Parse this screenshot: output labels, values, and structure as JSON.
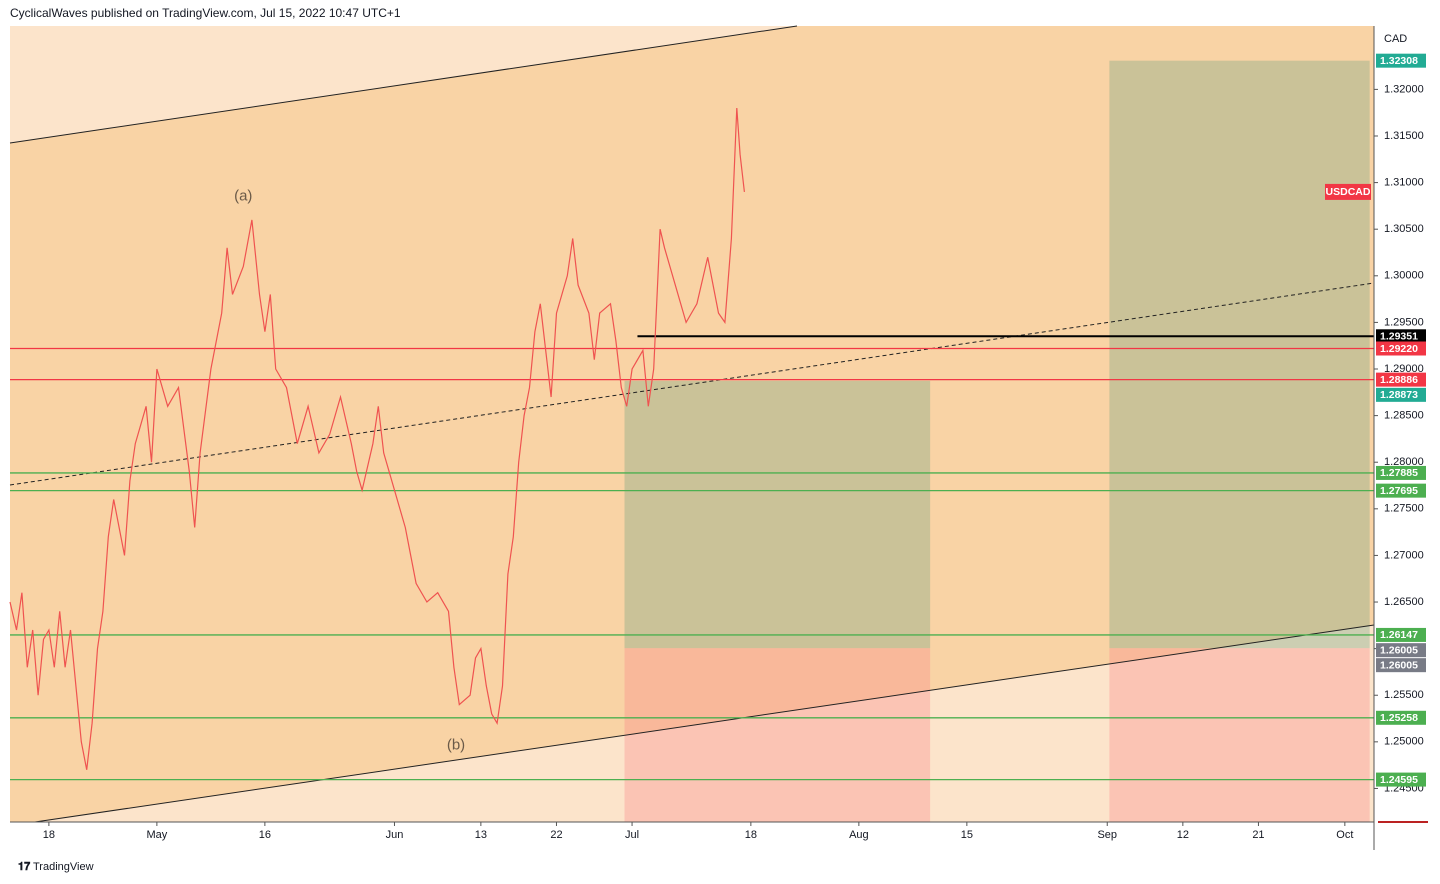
{
  "chart_data": {
    "type": "line",
    "header": "CyclicalWaves published on TradingView.com, Jul 15, 2022 10:47 UTC+1",
    "brand": "TradingView",
    "currency": "CAD",
    "series": [
      {
        "name": "USDCAD",
        "color": "#ef5350",
        "x": [
          -3.6,
          -3,
          -2.5,
          -2,
          -1.5,
          -1,
          -0.5,
          0,
          0.5,
          1,
          1.5,
          2,
          2.5,
          3,
          3.5,
          4,
          4.5,
          5,
          5.5,
          6,
          7,
          7.5,
          8,
          9,
          9.5,
          10,
          11,
          12,
          13,
          13.5,
          14,
          15,
          16,
          16.5,
          17,
          18,
          18.8,
          19.5,
          20,
          20.5,
          21,
          22,
          23,
          24,
          25,
          26,
          27,
          28,
          28.5,
          29,
          30,
          30.5,
          31,
          32,
          33,
          34,
          35,
          36,
          37,
          37.5,
          38,
          39,
          39.5,
          40,
          40.5,
          41,
          41.5,
          42,
          42.5,
          43,
          43.5,
          44,
          44.5,
          45,
          45.5,
          46,
          46.5,
          47,
          48,
          48.5,
          49,
          50,
          50.5,
          51,
          52,
          52.5,
          53,
          53.5,
          54,
          55,
          55.5,
          56,
          56.6,
          57,
          58,
          59,
          60,
          61,
          62,
          62.6,
          63.2,
          63.7,
          64,
          64.4
        ],
        "values": [
          1.265,
          1.262,
          1.266,
          1.258,
          1.262,
          1.255,
          1.261,
          1.262,
          1.258,
          1.264,
          1.258,
          1.262,
          1.256,
          1.25,
          1.247,
          1.252,
          1.26,
          1.264,
          1.272,
          1.276,
          1.27,
          1.278,
          1.282,
          1.286,
          1.28,
          1.29,
          1.286,
          1.288,
          1.279,
          1.273,
          1.281,
          1.29,
          1.296,
          1.303,
          1.298,
          1.301,
          1.306,
          1.298,
          1.294,
          1.298,
          1.29,
          1.288,
          1.282,
          1.286,
          1.281,
          1.283,
          1.287,
          1.282,
          1.279,
          1.277,
          1.282,
          1.286,
          1.281,
          1.277,
          1.273,
          1.267,
          1.265,
          1.266,
          1.264,
          1.258,
          1.254,
          1.255,
          1.259,
          1.26,
          1.256,
          1.253,
          1.252,
          1.256,
          1.268,
          1.272,
          1.28,
          1.285,
          1.288,
          1.294,
          1.297,
          1.292,
          1.287,
          1.296,
          1.3,
          1.304,
          1.299,
          1.296,
          1.291,
          1.296,
          1.297,
          1.293,
          1.288,
          1.286,
          1.29,
          1.292,
          1.286,
          1.29,
          1.305,
          1.303,
          1.299,
          1.295,
          1.297,
          1.302,
          1.296,
          1.295,
          1.304,
          1.318,
          1.313,
          1.309
        ]
      }
    ],
    "annotations": [
      {
        "text": "(a)",
        "x": 18,
        "y": 1.3085
      },
      {
        "text": "(b)",
        "x": 37.7,
        "y": 1.2496
      }
    ],
    "xlim": [
      -3.6,
      122.7
    ],
    "ylim": [
      1.2414,
      1.3268
    ],
    "xticks": [
      {
        "value": 0,
        "label": "18"
      },
      {
        "value": 10,
        "label": "May"
      },
      {
        "value": 20,
        "label": "16"
      },
      {
        "value": 32,
        "label": "Jun"
      },
      {
        "value": 40,
        "label": "13"
      },
      {
        "value": 47,
        "label": "22"
      },
      {
        "value": 54,
        "label": "Jul"
      },
      {
        "value": 65,
        "label": "18"
      },
      {
        "value": 75,
        "label": "Aug"
      },
      {
        "value": 85,
        "label": "15"
      },
      {
        "value": 98,
        "label": "Sep"
      },
      {
        "value": 105,
        "label": "12"
      },
      {
        "value": 112,
        "label": "21"
      },
      {
        "value": 120,
        "label": "Oct"
      }
    ],
    "yticks": [
      {
        "value": 1.245,
        "label": "1.24500"
      },
      {
        "value": 1.25,
        "label": "1.25000"
      },
      {
        "value": 1.255,
        "label": "1.25500"
      },
      {
        "value": 1.26,
        "label": "1.26000"
      },
      {
        "value": 1.265,
        "label": "1.26500"
      },
      {
        "value": 1.27,
        "label": "1.27000"
      },
      {
        "value": 1.275,
        "label": "1.27500"
      },
      {
        "value": 1.28,
        "label": "1.28000"
      },
      {
        "value": 1.285,
        "label": "1.28500"
      },
      {
        "value": 1.29,
        "label": "1.29000"
      },
      {
        "value": 1.295,
        "label": "1.29500"
      },
      {
        "value": 1.3,
        "label": "1.30000"
      },
      {
        "value": 1.305,
        "label": "1.30500"
      },
      {
        "value": 1.31,
        "label": "1.31000"
      },
      {
        "value": 1.315,
        "label": "1.31500"
      },
      {
        "value": 1.32,
        "label": "1.32000"
      }
    ],
    "levels": [
      {
        "value": 1.29351,
        "color": "#000000",
        "from": 54.5
      },
      {
        "value": 1.2922,
        "label": "1.29220",
        "color": "#f23645"
      },
      {
        "value": 1.28886,
        "color": "#f23645"
      },
      {
        "value": 1.27885,
        "color": "#4caf50"
      },
      {
        "value": 1.27695,
        "color": "#4caf50"
      },
      {
        "value": 1.26147,
        "color": "#4caf50"
      },
      {
        "value": 1.25258,
        "color": "#4caf50"
      },
      {
        "value": 1.24595,
        "color": "#4caf50"
      }
    ],
    "boxes": [
      {
        "x": [
          53.3,
          81.6
        ],
        "top": 1.28873,
        "mid": 1.26005
      },
      {
        "x": [
          98.2,
          122.3
        ],
        "top": 1.32308,
        "mid": 1.26005
      }
    ]
  }
}
